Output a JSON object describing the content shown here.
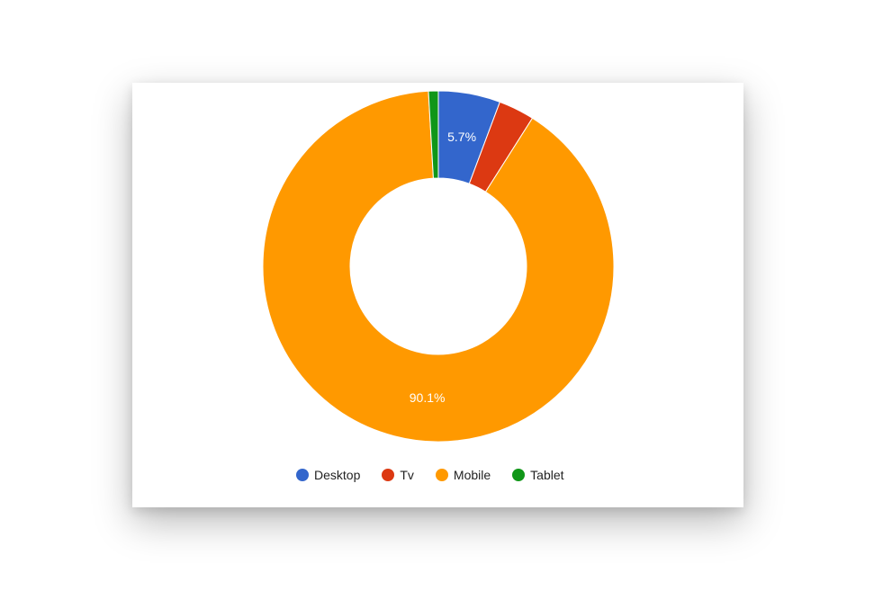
{
  "chart_data": {
    "type": "pie",
    "donut": true,
    "legend_position": "bottom",
    "slices": [
      {
        "name": "Desktop",
        "value": 5.7,
        "color": "#3366cc",
        "label": "5.7%"
      },
      {
        "name": "Tv",
        "value": 3.3,
        "color": "#dc3912",
        "label": ""
      },
      {
        "name": "Mobile",
        "value": 90.1,
        "color": "#ff9900",
        "label": "90.1%"
      },
      {
        "name": "Tablet",
        "value": 0.9,
        "color": "#109618",
        "label": ""
      }
    ]
  },
  "legend": {
    "items": [
      {
        "label": "Desktop",
        "color": "#3366cc"
      },
      {
        "label": "Tv",
        "color": "#dc3912"
      },
      {
        "label": "Mobile",
        "color": "#ff9900"
      },
      {
        "label": "Tablet",
        "color": "#109618"
      }
    ]
  }
}
